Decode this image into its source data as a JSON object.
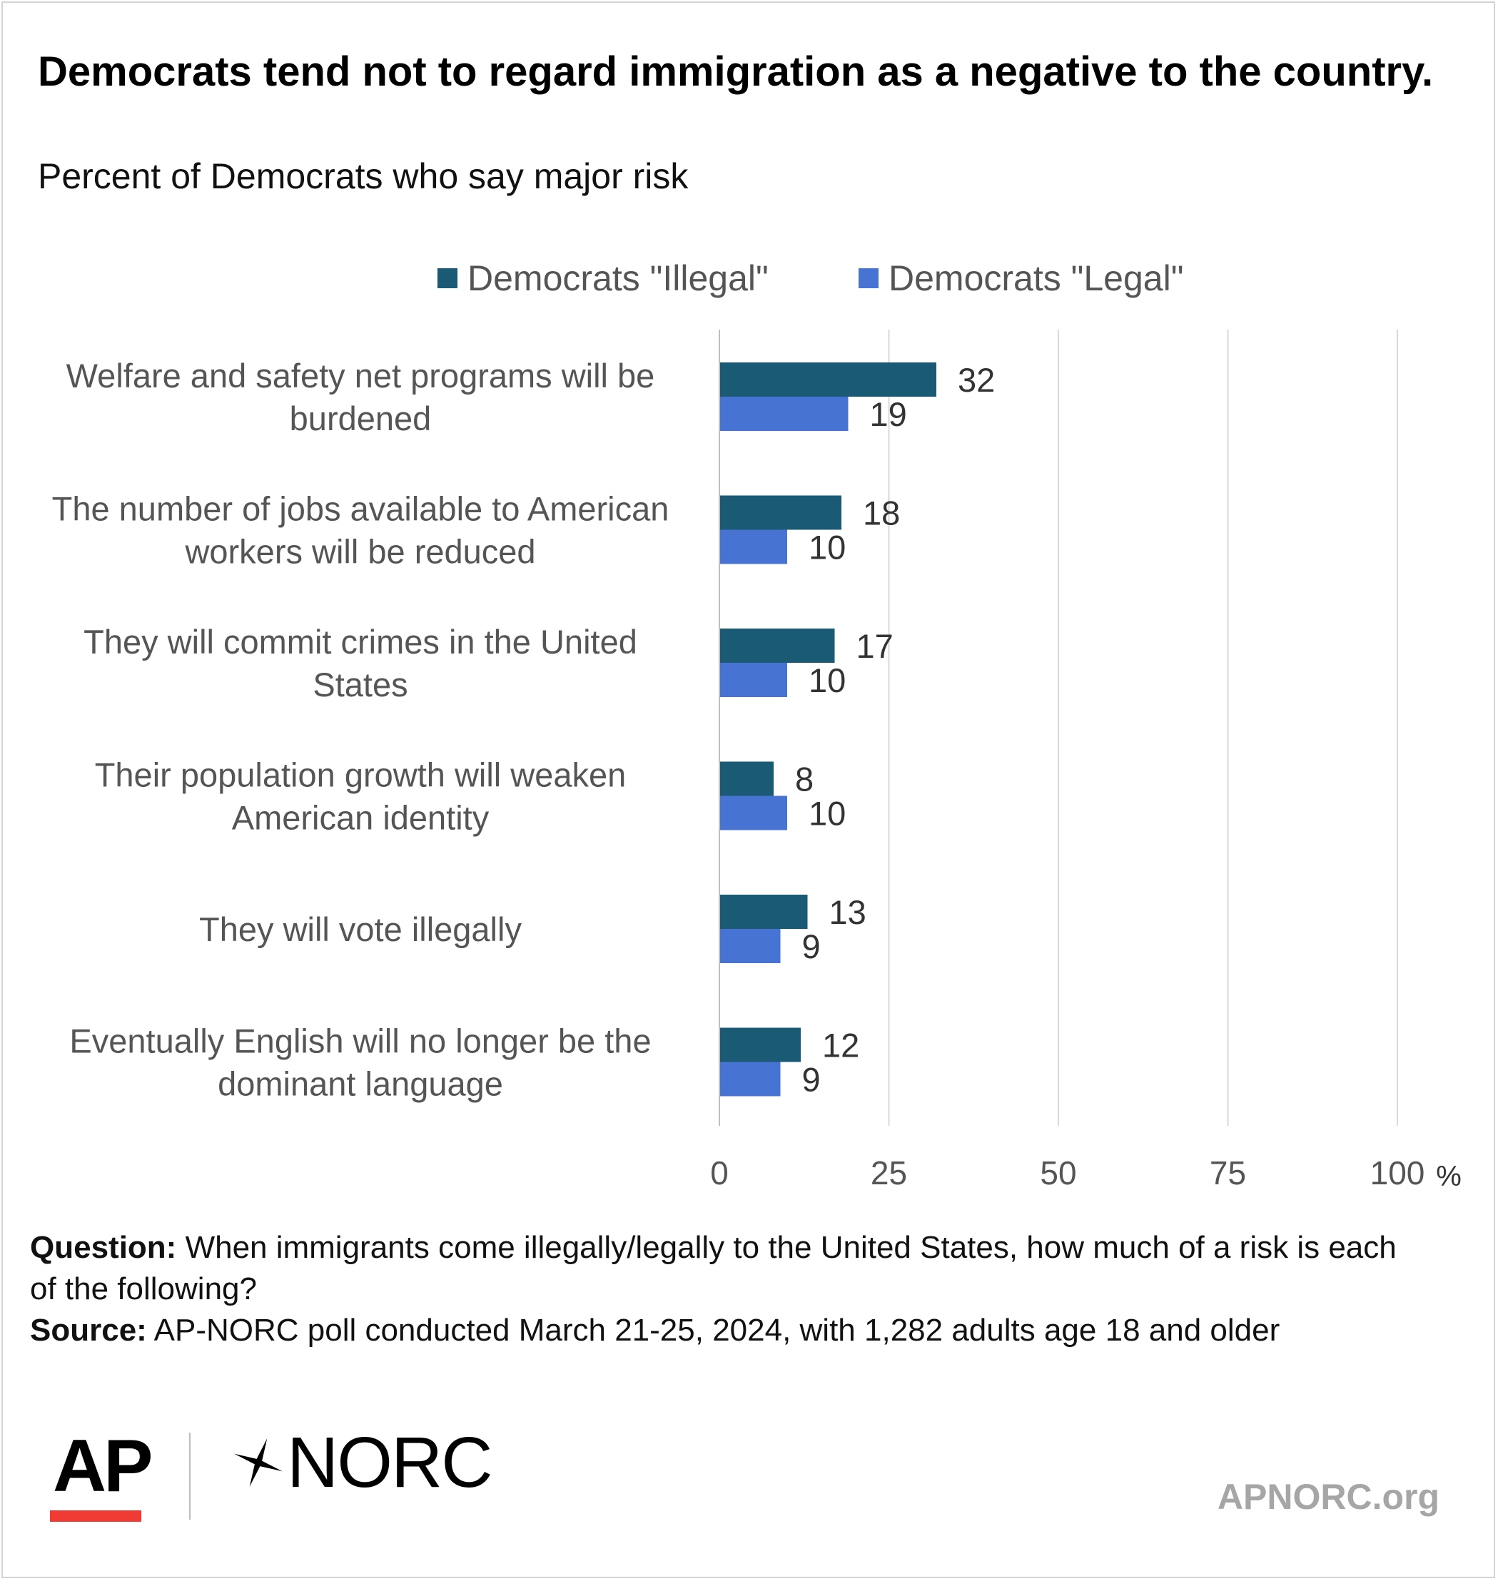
{
  "title": "Democrats tend not to regard immigration as a negative to the country.",
  "subtitle": "Percent of Democrats who say major risk",
  "legend": [
    {
      "label": "Democrats \"Illegal\"",
      "color": "#1a5a75"
    },
    {
      "label": "Democrats \"Legal\"",
      "color": "#4773d3"
    }
  ],
  "chart_data": {
    "type": "bar",
    "orientation": "horizontal",
    "categories": [
      [
        "Welfare and safety net programs will be",
        "burdened"
      ],
      [
        "The number of jobs available to American",
        "workers will be reduced"
      ],
      [
        "They will commit crimes in the United",
        "States"
      ],
      [
        "Their population growth will weaken",
        "American identity"
      ],
      [
        "They will vote illegally"
      ],
      [
        "Eventually English will no longer be the",
        "dominant language"
      ]
    ],
    "series": [
      {
        "name": "Democrats \"Illegal\"",
        "color": "#1a5a75",
        "values": [
          32,
          18,
          17,
          8,
          13,
          12
        ]
      },
      {
        "name": "Democrats \"Legal\"",
        "color": "#4773d3",
        "values": [
          19,
          10,
          10,
          10,
          9,
          9
        ]
      }
    ],
    "xlim": [
      0,
      100
    ],
    "xticks": [
      "0",
      "25",
      "50",
      "75",
      "100"
    ],
    "xunit": "%",
    "grid": true,
    "legend_position": "top"
  },
  "notes": {
    "question_label": "Question:",
    "question_text": "When immigrants come illegally/legally to the United States, how much of a risk is each of the following?",
    "source_label": "Source:",
    "source_text": "AP-NORC poll conducted March 21-25, 2024, with 1,282 adults age 18 and older"
  },
  "footer": {
    "ap_logo": "AP",
    "norc_logo": "NORC",
    "website": "APNORC.org"
  }
}
